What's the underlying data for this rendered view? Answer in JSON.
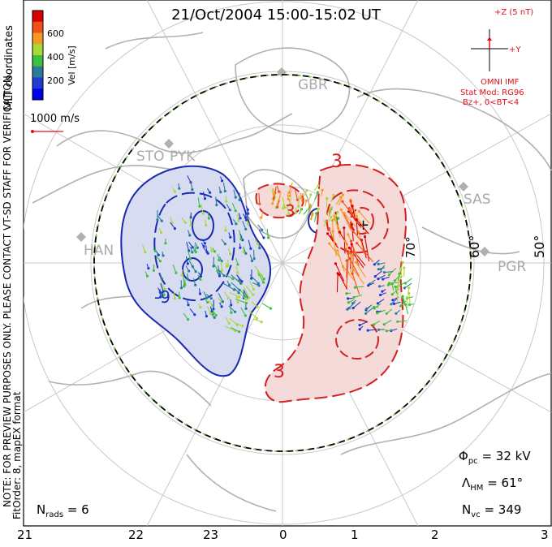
{
  "title": "21/Oct/2004 15:00-15:02 UT",
  "colorbar": {
    "label": "Vel [m/s]",
    "ticks": [
      "600",
      "400",
      "200"
    ],
    "colors": [
      "#d80000",
      "#f0501a",
      "#f59a20",
      "#a8d83a",
      "#3cc040",
      "#2a7d9a",
      "#1e3ccf",
      "#0000e8"
    ],
    "coord_label": "MLT coordinates"
  },
  "scale_vector": {
    "label": "1000 m/s",
    "color": "#e0101a"
  },
  "imf": {
    "bz_label": "+Z (5 nT)",
    "by_label": "+Y",
    "source": "OMNI IMF",
    "model": "Stat Mod: RG96",
    "condition": "Bz+, 0<BT<4",
    "color": "#e0101a"
  },
  "sites": [
    "GBR",
    "STO",
    "PYK",
    "SAS",
    "HAN",
    "PGR"
  ],
  "latitude_labels": [
    "60°",
    "50°",
    "70°"
  ],
  "contour_labels": {
    "pos_top": "3",
    "pos_mid": "3",
    "pos_bottom": "3",
    "neg": "-9"
  },
  "note_vertical": "NOTE: FOR PREVIEW PURPOSES ONLY. PLEASE CONTACT VT-SD STAFF FOR VERIFICATION.",
  "fit_info": "FitOrder: 8, mapEX format",
  "stats": {
    "n_rads_label": "N",
    "n_rads_sub": "rads",
    "n_rads_value": "= 6",
    "phi_label": "Φ",
    "phi_sub": "pc",
    "phi_value": "= 32 kV",
    "lambda_label": "Λ",
    "lambda_sub": "HM",
    "lambda_value": "= 61°",
    "nvc_label": "N",
    "nvc_sub": "vc",
    "nvc_value": "= 349"
  },
  "bottom_ticks": [
    "21",
    "22",
    "23",
    "0",
    "1",
    "2",
    "3"
  ],
  "colors": {
    "positive": "#d42020",
    "positive_fill": "#f5dada",
    "negative": "#1a2ab0",
    "negative_fill": "#d8dcf0",
    "land": "#b0b0b0",
    "grid": "#c8c8c8"
  }
}
